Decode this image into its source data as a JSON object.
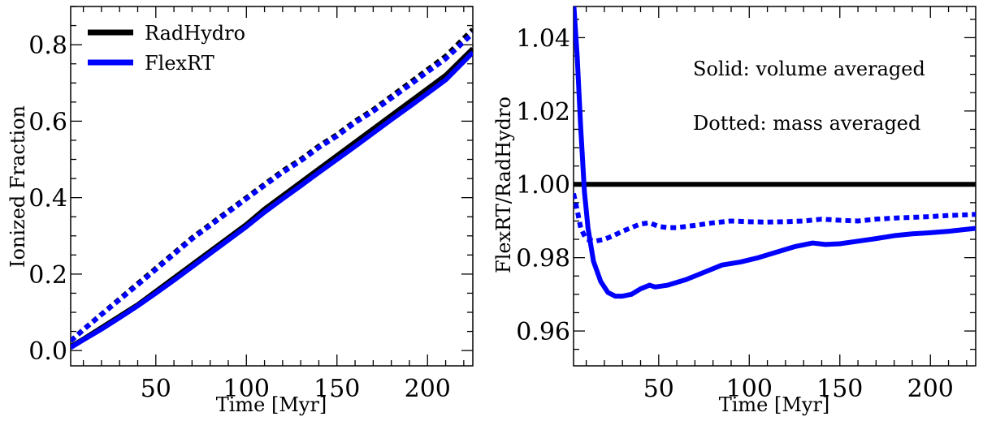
{
  "chart_data": [
    {
      "type": "line",
      "title": "",
      "xlabel": "Time [Myr]",
      "ylabel": "Ionized Fraction",
      "xlim": [
        3,
        225
      ],
      "ylim": [
        -0.04,
        0.9
      ],
      "xticks": [
        50,
        100,
        150,
        200
      ],
      "yticks": [
        0.0,
        0.2,
        0.4,
        0.6,
        0.8
      ],
      "ytick_labels": [
        "0.0",
        "0.2",
        "0.4",
        "0.6",
        "0.8"
      ],
      "legend": {
        "placement": "top-left",
        "entries": [
          {
            "label": "RadHydro",
            "color": "#000000"
          },
          {
            "label": "FlexRT",
            "color": "#0000ff"
          }
        ]
      },
      "series": [
        {
          "name": "RadHydro (volume averaged)",
          "color": "#000000",
          "style": "solid",
          "x": [
            3,
            10,
            20,
            30,
            40,
            50,
            60,
            70,
            80,
            90,
            100,
            110,
            120,
            130,
            140,
            150,
            160,
            170,
            180,
            190,
            200,
            210,
            225
          ],
          "y": [
            0.01,
            0.03,
            0.06,
            0.09,
            0.12,
            0.155,
            0.19,
            0.225,
            0.26,
            0.295,
            0.33,
            0.37,
            0.405,
            0.44,
            0.475,
            0.51,
            0.545,
            0.58,
            0.615,
            0.65,
            0.685,
            0.72,
            0.79
          ]
        },
        {
          "name": "FlexRT (volume averaged)",
          "color": "#0000ff",
          "style": "solid",
          "x": [
            3,
            10,
            20,
            30,
            40,
            50,
            60,
            70,
            80,
            90,
            100,
            110,
            120,
            130,
            140,
            150,
            160,
            170,
            180,
            190,
            200,
            210,
            225
          ],
          "y": [
            0.008,
            0.028,
            0.056,
            0.086,
            0.117,
            0.15,
            0.184,
            0.219,
            0.254,
            0.289,
            0.324,
            0.362,
            0.397,
            0.431,
            0.466,
            0.5,
            0.534,
            0.569,
            0.604,
            0.638,
            0.673,
            0.708,
            0.78
          ]
        },
        {
          "name": "RadHydro (mass averaged)",
          "color": "#000000",
          "style": "dotted",
          "x": [
            3,
            10,
            20,
            30,
            40,
            50,
            60,
            70,
            80,
            90,
            100,
            110,
            120,
            130,
            140,
            150,
            160,
            170,
            180,
            190,
            200,
            210,
            225
          ],
          "y": [
            0.025,
            0.055,
            0.095,
            0.135,
            0.175,
            0.215,
            0.255,
            0.295,
            0.33,
            0.365,
            0.4,
            0.435,
            0.47,
            0.5,
            0.535,
            0.565,
            0.6,
            0.63,
            0.665,
            0.7,
            0.735,
            0.77,
            0.84
          ]
        },
        {
          "name": "FlexRT (mass averaged)",
          "color": "#0000ff",
          "style": "dotted",
          "x": [
            3,
            10,
            20,
            30,
            40,
            50,
            60,
            70,
            80,
            90,
            100,
            110,
            120,
            130,
            140,
            150,
            160,
            170,
            180,
            190,
            200,
            210,
            225
          ],
          "y": [
            0.025,
            0.054,
            0.094,
            0.133,
            0.172,
            0.212,
            0.252,
            0.292,
            0.327,
            0.362,
            0.397,
            0.432,
            0.466,
            0.496,
            0.531,
            0.561,
            0.596,
            0.626,
            0.66,
            0.694,
            0.729,
            0.763,
            0.83
          ]
        }
      ]
    },
    {
      "type": "line",
      "title": "",
      "xlabel": "Time [Myr]",
      "ylabel": "FlexRT/RadHydro",
      "xlim": [
        3,
        225
      ],
      "ylim": [
        0.9505,
        1.0485
      ],
      "xticks": [
        50,
        100,
        150,
        200
      ],
      "yticks": [
        0.96,
        0.98,
        1.0,
        1.02,
        1.04
      ],
      "ytick_labels": [
        "0.96",
        "0.98",
        "1.00",
        "1.02",
        "1.04"
      ],
      "annotations": [
        "Solid: volume averaged",
        "Dotted: mass averaged"
      ],
      "series": [
        {
          "name": "RadHydro/RadHydro",
          "color": "#000000",
          "style": "solid",
          "x": [
            3,
            225
          ],
          "y": [
            1.0,
            1.0
          ]
        },
        {
          "name": "FlexRT/RadHydro (volume averaged)",
          "color": "#0000ff",
          "style": "solid",
          "x": [
            3,
            5,
            7,
            9,
            11,
            14,
            18,
            22,
            26,
            30,
            35,
            40,
            45,
            48,
            55,
            65,
            75,
            85,
            95,
            105,
            115,
            125,
            135,
            142,
            150,
            160,
            170,
            180,
            190,
            200,
            210,
            225
          ],
          "y": [
            1.05,
            1.035,
            1.015,
            0.998,
            0.988,
            0.979,
            0.9735,
            0.9705,
            0.9695,
            0.9695,
            0.97,
            0.9715,
            0.9725,
            0.972,
            0.9725,
            0.974,
            0.976,
            0.978,
            0.9788,
            0.98,
            0.9815,
            0.983,
            0.984,
            0.9836,
            0.9838,
            0.9845,
            0.9852,
            0.986,
            0.9865,
            0.9868,
            0.9872,
            0.988
          ]
        },
        {
          "name": "FlexRT/RadHydro (mass averaged)",
          "color": "#0000ff",
          "style": "dotted",
          "x": [
            3,
            5,
            7,
            10,
            15,
            20,
            25,
            30,
            35,
            40,
            45,
            50,
            55,
            60,
            70,
            80,
            90,
            100,
            110,
            120,
            130,
            140,
            150,
            160,
            170,
            180,
            190,
            200,
            210,
            225
          ],
          "y": [
            0.9975,
            0.993,
            0.988,
            0.985,
            0.9845,
            0.985,
            0.986,
            0.9872,
            0.9882,
            0.9892,
            0.9895,
            0.9885,
            0.9882,
            0.9882,
            0.9888,
            0.9895,
            0.99,
            0.9898,
            0.9897,
            0.9898,
            0.99,
            0.9905,
            0.9902,
            0.99,
            0.9905,
            0.9908,
            0.991,
            0.9912,
            0.9915,
            0.9918
          ]
        }
      ]
    }
  ]
}
